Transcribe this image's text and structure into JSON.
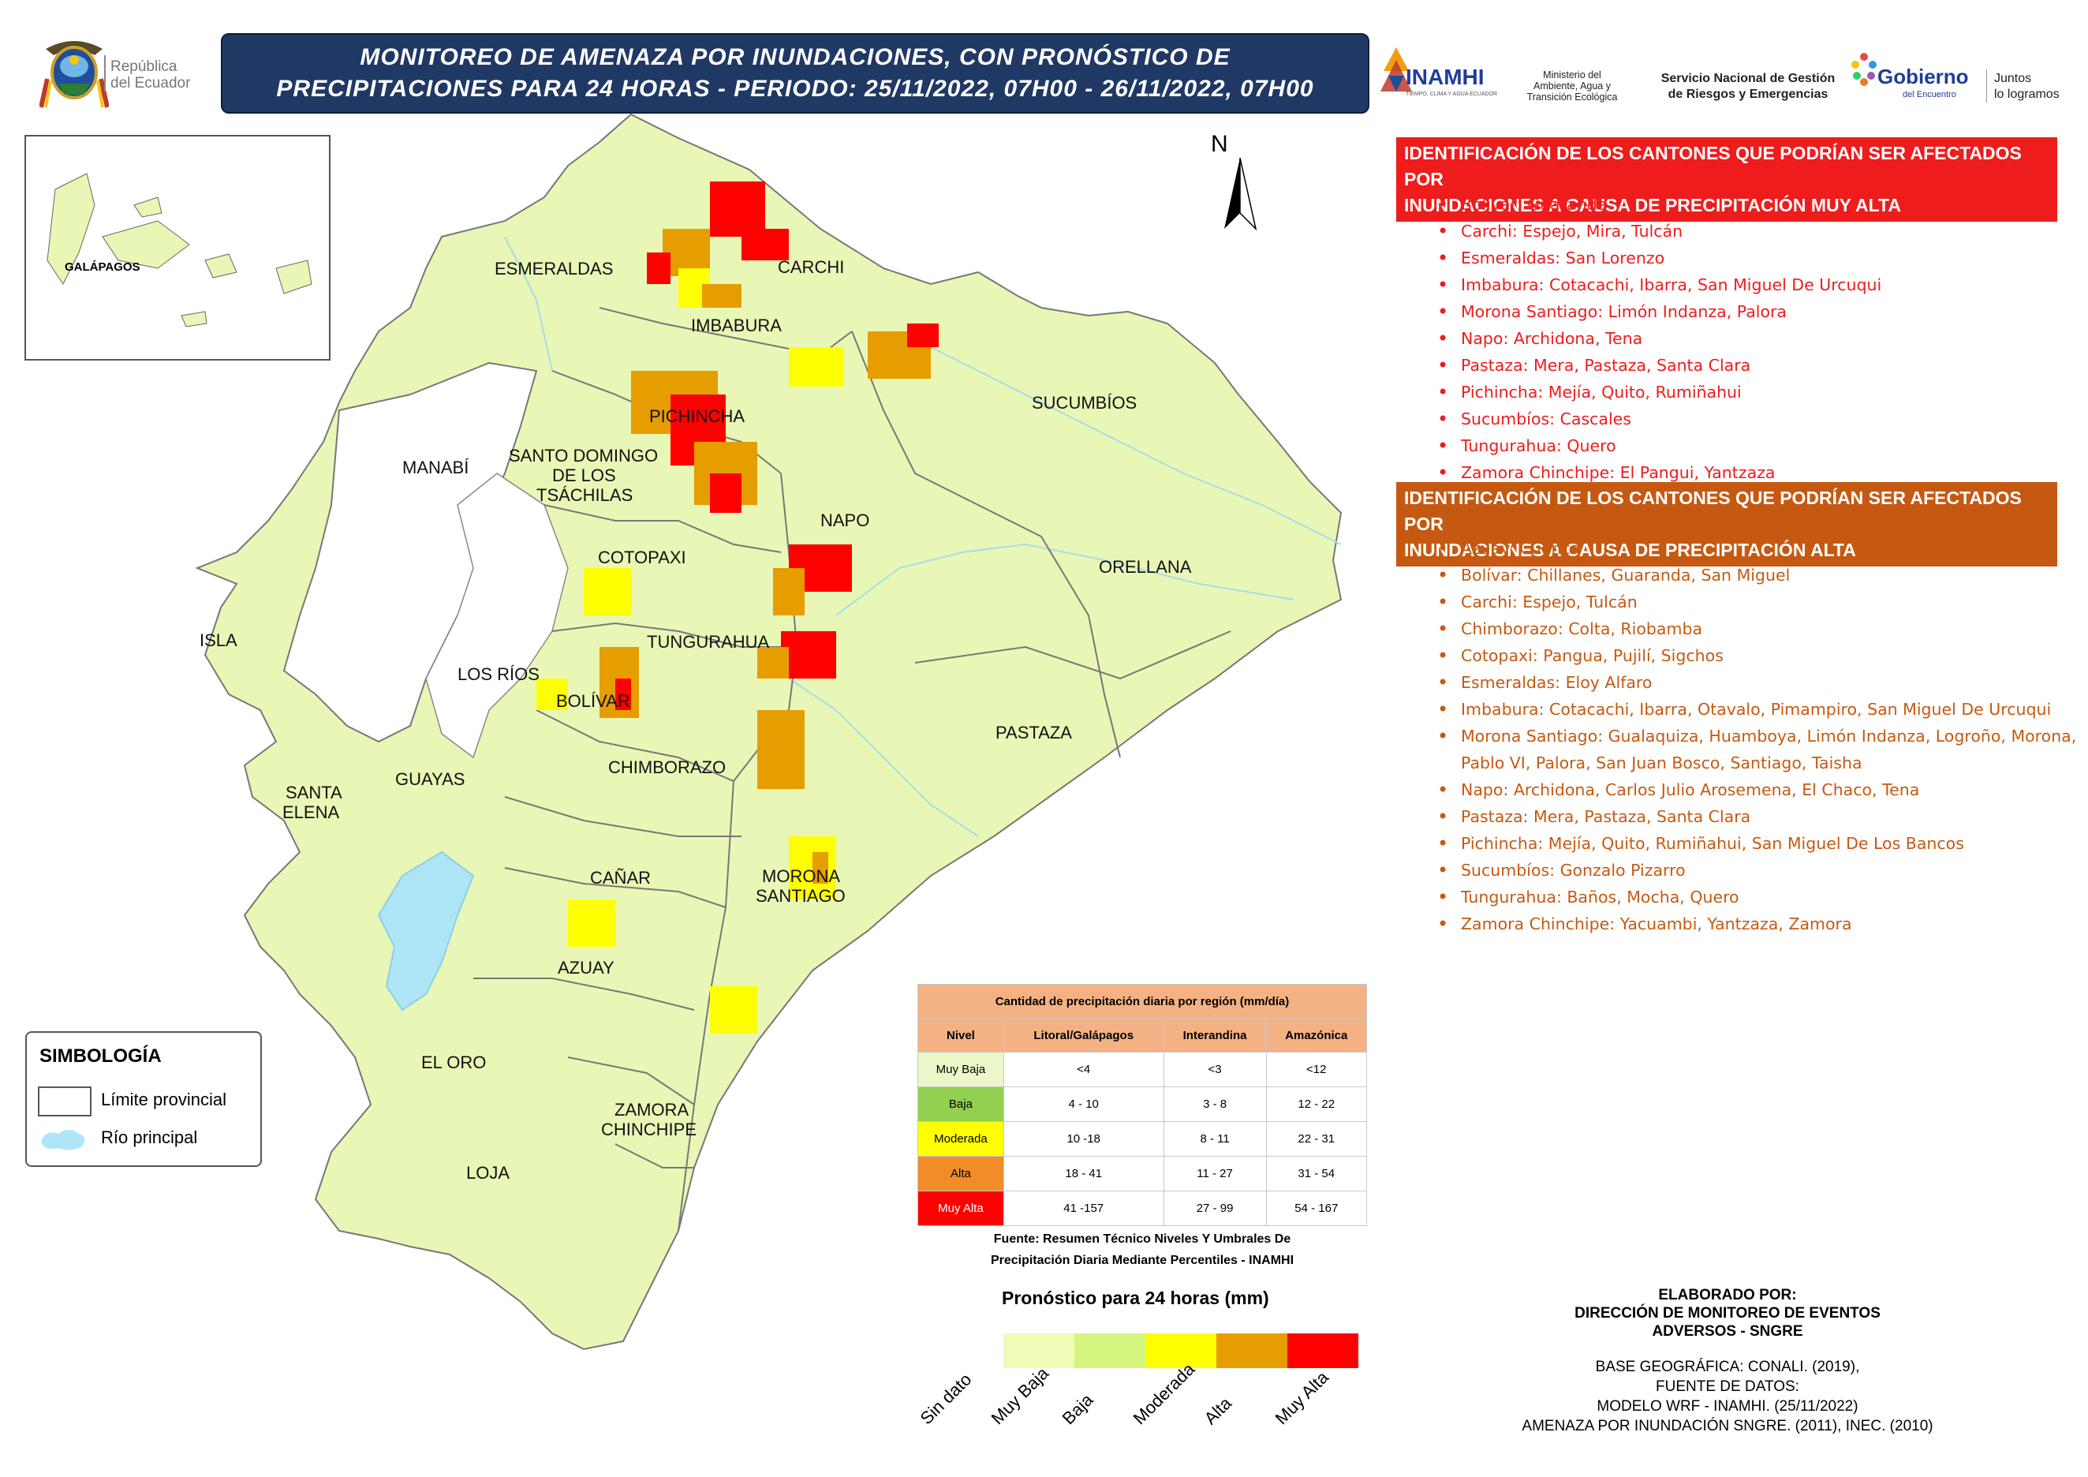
{
  "header": {
    "title_line1": "MONITOREO DE AMENAZA POR INUNDACIONES, CON PRONÓSTICO DE",
    "title_line2": "PRECIPITACIONES  PARA 24  HORAS - PERIODO: 25/11/2022, 07H00 - 26/11/2022, 07H00",
    "republica_line1": "República",
    "republica_line2": "del Ecuador",
    "inamhi": "INAMHI",
    "inamhi_sub": "TIEMPO, CLIMA Y AGUA ECUADOR",
    "ministerio_line1": "Ministerio del",
    "ministerio_line2": "Ambiente, Agua y",
    "ministerio_line3": "Transición Ecológica",
    "sngre_line1": "Servicio Nacional de Gestión",
    "sngre_line2": "de Riesgos y Emergencias",
    "gobierno": "Gobierno",
    "gobierno_sub": "del Encuentro",
    "juntos_line1": "Juntos",
    "juntos_line2": "lo logramos"
  },
  "map": {
    "north_label": "N",
    "inset_label": "GALÁPAGOS",
    "provinces": [
      "ESMERALDAS",
      "CARCHI",
      "IMBABURA",
      "SUCUMBÍOS",
      "PICHINCHA",
      "MANABÍ",
      "SANTO DOMINGO",
      "DE LOS",
      "TSÁCHILAS",
      "NAPO",
      "COTOPAXI",
      "ORELLANA",
      "ISLA",
      "TUNGURAHUA",
      "LOS RÍOS",
      "BOLÍVAR",
      "PASTAZA",
      "SANTA",
      "ELENA",
      "GUAYAS",
      "CHIMBORAZO",
      "CAÑAR",
      "MORONA",
      "SANTIAGO",
      "AZUAY",
      "EL ORO",
      "ZAMORA",
      "CHINCHIPE",
      "LOJA"
    ],
    "colors": {
      "land": "#e8f7b5",
      "river": "#aee6f7",
      "muy_baja": "#eefcb8",
      "baja": "#d4f57f",
      "moderada": "#ffff00",
      "alta": "#e69d00",
      "muy_alta": "#ff0000"
    }
  },
  "list_muy_alta": {
    "title_line1": "IDENTIFICACIÓN DE LOS CANTONES QUE PODRÍAN SER AFECTADOS POR",
    "title_line2": "INUNDACIONES A CAUSA DE  PRECIPITACIÓN MUY ALTA",
    "header_color": "#ee1c1c",
    "items": [
      "Bolívar: Guaranda",
      "Carchi: Espejo, Mira, Tulcán",
      "Esmeraldas: San Lorenzo",
      "Imbabura: Cotacachi, Ibarra, San Miguel De Urcuqui",
      "Morona Santiago: Limón Indanza, Palora",
      "Napo: Archidona, Tena",
      "Pastaza: Mera, Pastaza, Santa Clara",
      "Pichincha: Mejía, Quito, Rumiñahui",
      "Sucumbíos: Cascales",
      "Tungurahua: Quero",
      "Zamora Chinchipe: El Pangui, Yantzaza"
    ]
  },
  "list_alta": {
    "title_line1": "IDENTIFICACIÓN DE LOS CANTONES QUE PODRÍAN SER AFECTADOS POR",
    "title_line2": "INUNDACIONES A CAUSA DE  PRECIPITACIÓN  ALTA",
    "header_color": "#c65911",
    "items": [
      "Azuay: Cuenca",
      "Bolívar: Chillanes, Guaranda, San Miguel",
      "Carchi: Espejo, Tulcán",
      "Chimborazo: Colta, Riobamba",
      "Cotopaxi: Pangua, Pujilí, Sigchos",
      "Esmeraldas: Eloy Alfaro",
      "Imbabura: Cotacachi, Ibarra, Otavalo, Pimampiro, San Miguel De Urcuqui",
      "Morona Santiago: Gualaquiza, Huamboya, Limón Indanza, Logroño, Morona,",
      "Pablo VI, Palora, San Juan Bosco, Santiago, Taisha",
      "Napo: Archidona, Carlos Julio Arosemena, El Chaco, Tena",
      "Pastaza: Mera, Pastaza, Santa Clara",
      "Pichincha: Mejía, Quito, Rumiñahui, San Miguel De Los Bancos",
      "Sucumbíos: Gonzalo Pizarro",
      "Tungurahua: Baños, Mocha, Quero",
      "Zamora Chinchipe: Yacuambi, Yantzaza, Zamora"
    ]
  },
  "precip_table": {
    "caption": "Cantidad de precipitación diaria por región (mm/día)",
    "columns": [
      "Nivel",
      "Litoral/Galápagos",
      "Interandina",
      "Amazónica"
    ],
    "rows": [
      {
        "nivel": "Muy Baja",
        "litoral": "<4",
        "interandina": "<3",
        "amazonica": "<12",
        "color": "#ebf7c9"
      },
      {
        "nivel": "Baja",
        "litoral": "4 - 10",
        "interandina": "3 - 8",
        "amazonica": "12 - 22",
        "color": "#92d050"
      },
      {
        "nivel": "Moderada",
        "litoral": "10 -18",
        "interandina": "8 - 11",
        "amazonica": "22 - 31",
        "color": "#ffff00"
      },
      {
        "nivel": "Alta",
        "litoral": "18 - 41",
        "interandina": "11 - 27",
        "amazonica": "31 - 54",
        "color": "#f28c28"
      },
      {
        "nivel": "Muy Alta",
        "litoral": "41 -157",
        "interandina": "27 - 99",
        "amazonica": "54 - 167",
        "color": "#ff0000"
      }
    ],
    "source_line1": "Fuente: Resumen Técnico Niveles Y Umbrales De",
    "source_line2": "Precipitación Diaria Mediante Percentiles - INAMHI"
  },
  "forecast_legend": {
    "title": "Pronóstico para 24 horas (mm)",
    "labels": [
      "Sin dato",
      "Muy Baja",
      "Baja",
      "Moderada",
      "Alta",
      "Muy Alta"
    ],
    "swatch_colors": [
      "#eefcb8",
      "#d4f57f",
      "#ffff00",
      "#e69d00",
      "#ff0000"
    ]
  },
  "simbologia": {
    "title": "SIMBOLOGÍA",
    "item1": "Límite provincial",
    "item2": "Río principal"
  },
  "credits": {
    "elaborado_line1": "ELABORADO POR:",
    "elaborado_line2": "DIRECCIÓN DE MONITOREO DE EVENTOS",
    "elaborado_line3": "ADVERSOS - SNGRE",
    "base_line1": "BASE GEOGRÁFICA: CONALI. (2019),",
    "base_line2": "FUENTE DE DATOS:",
    "base_line3": "MODELO WRF - INAMHI. (25/11/2022)",
    "base_line4": "AMENAZA POR INUNDACIÓN SNGRE. (2011), INEC. (2010)"
  }
}
